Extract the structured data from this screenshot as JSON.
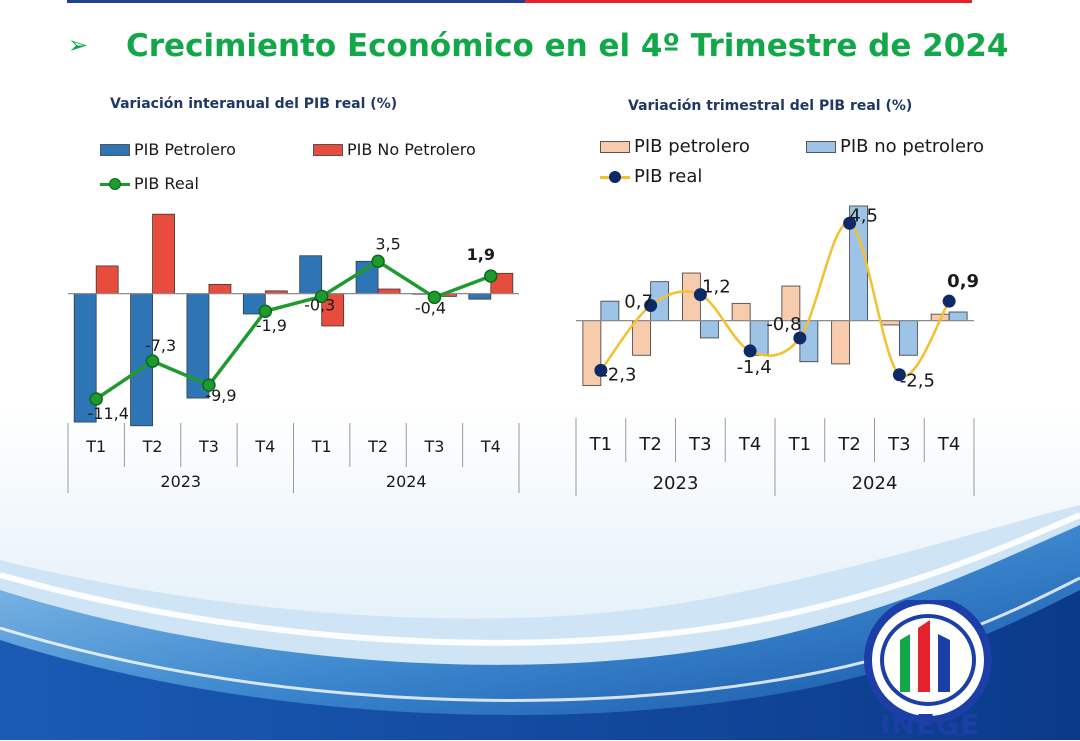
{
  "slide": {
    "title": "Crecimiento Económico en el 4º Trimestre de 2024",
    "title_bullet": "➢",
    "colors": {
      "title": "#12a84a",
      "top_bar_blue": "#1f3f8f",
      "top_bar_red": "#e5232d"
    }
  },
  "logo": {
    "text": "INEGE",
    "icon": "inege-logo-icon",
    "colors": [
      "#1b3fa6",
      "#12a84a",
      "#e5232d"
    ]
  },
  "chart_data": [
    {
      "type": "bar",
      "title": "Variación interanual del PIB real (%)",
      "categories": [
        "T1",
        "T2",
        "T3",
        "T4",
        "T1",
        "T2",
        "T3",
        "T4"
      ],
      "groups": [
        {
          "label": "2023",
          "span": 4
        },
        {
          "label": "2024",
          "span": 4
        }
      ],
      "ylim": [
        -14,
        11
      ],
      "legend_position": "top",
      "grid": false,
      "series": [
        {
          "name": "PIB Petrolero",
          "kind": "bar",
          "color": "#2e75b6",
          "values": [
            -13.9,
            -14.3,
            -11.3,
            -2.2,
            4.1,
            3.5,
            0,
            -0.6
          ]
        },
        {
          "name": "PIB No Petrolero",
          "kind": "bar",
          "color": "#e84c3d",
          "values": [
            3.0,
            8.6,
            1.0,
            0.3,
            -3.5,
            0.5,
            -0.3,
            2.2
          ]
        },
        {
          "name": "PIB Real",
          "kind": "line",
          "color": "#1e9a2e",
          "values": [
            -11.4,
            -7.3,
            -9.9,
            -1.9,
            -0.3,
            3.5,
            -0.4,
            1.9
          ],
          "labels": [
            "-11,4",
            "-7,3",
            "-9,9",
            "-1,9",
            "-0,3",
            "3,5",
            "-0,4",
            "1,9"
          ]
        }
      ]
    },
    {
      "type": "bar",
      "title": "Variación trimestral del PIB real (%)",
      "categories": [
        "T1",
        "T2",
        "T3",
        "T4",
        "T1",
        "T2",
        "T3",
        "T4"
      ],
      "groups": [
        {
          "label": "2023",
          "span": 4
        },
        {
          "label": "2024",
          "span": 4
        }
      ],
      "ylim": [
        -4.5,
        6.5
      ],
      "legend_position": "top",
      "grid": false,
      "series": [
        {
          "name": "PIB petrolero",
          "kind": "bar",
          "color": "#f8cbad",
          "values": [
            -3.0,
            -1.6,
            2.2,
            0.8,
            1.6,
            -2.0,
            -0.2,
            0.3
          ]
        },
        {
          "name": "PIB no petrolero",
          "kind": "bar",
          "color": "#9dc3e6",
          "values": [
            0.9,
            1.8,
            -0.8,
            -1.6,
            -1.9,
            5.3,
            -1.6,
            0.4
          ]
        },
        {
          "name": "PIB real",
          "kind": "line",
          "color": "#f2c12e",
          "marker_color": "#0d2a66",
          "values": [
            -2.3,
            0.7,
            1.2,
            -1.4,
            -0.8,
            4.5,
            -2.5,
            0.9
          ],
          "labels": [
            "-2,3",
            "0,7",
            "1,2",
            "-1,4",
            "-0,8",
            "4,5",
            "-2,5",
            "0,9"
          ]
        }
      ]
    }
  ]
}
